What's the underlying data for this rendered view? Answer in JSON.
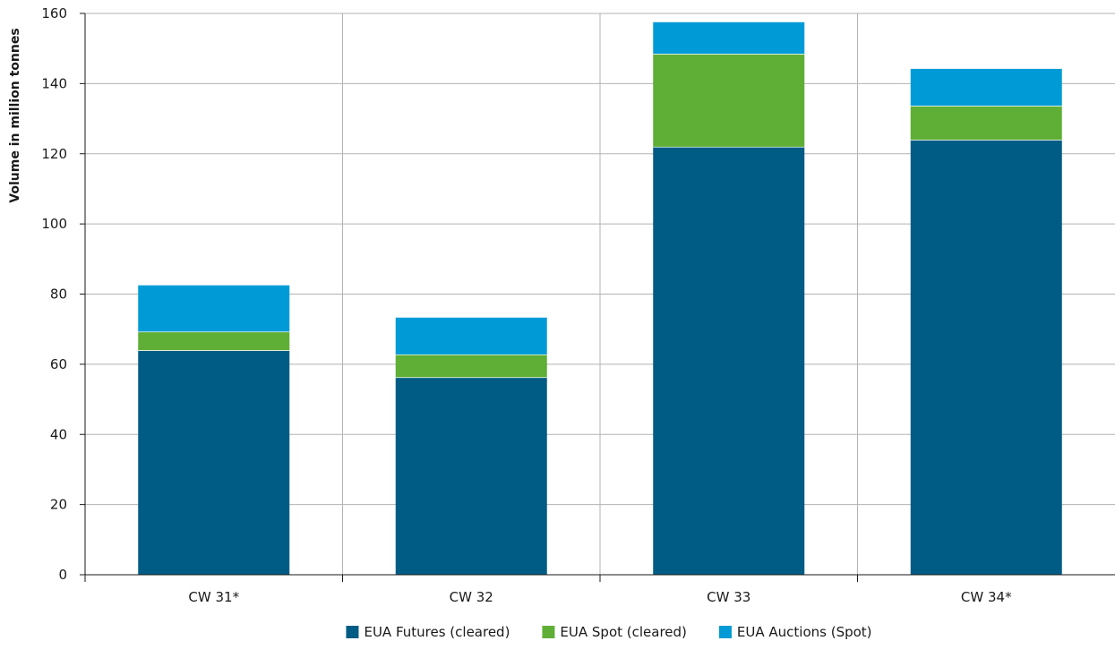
{
  "chart_data": {
    "type": "bar",
    "stacked": true,
    "title": "",
    "xlabel": "",
    "ylabel": "Volume in million tonnes",
    "ylim": [
      0,
      160
    ],
    "yticks": [
      0,
      20,
      40,
      60,
      80,
      100,
      120,
      140,
      160
    ],
    "grid": true,
    "legend_position": "bottom",
    "categories": [
      "CW 31*",
      "CW 32",
      "CW 33",
      "CW 34*"
    ],
    "series": [
      {
        "name": "EUA Futures (cleared)",
        "color": "#005c84",
        "values": [
          64,
          56.3,
          122,
          124
        ]
      },
      {
        "name": "EUA Spot (cleared)",
        "color": "#5fae36",
        "values": [
          5.3,
          6.5,
          26.5,
          9.7
        ]
      },
      {
        "name": "EUA Auctions (Spot)",
        "color": "#009bd6",
        "values": [
          13.2,
          10.5,
          9,
          10.5
        ]
      }
    ]
  }
}
